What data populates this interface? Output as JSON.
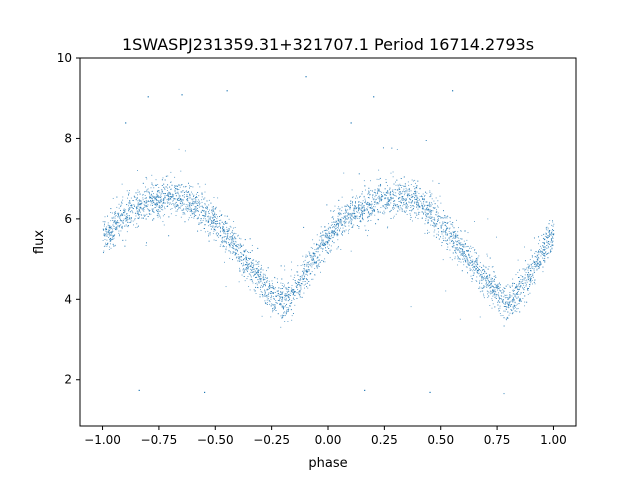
{
  "chart_data": {
    "type": "scatter",
    "title": "1SWASPJ231359.31+321707.1 Period 16714.2793s",
    "xlabel": "phase",
    "ylabel": "flux",
    "xlim": [
      -1.1,
      1.1
    ],
    "ylim": [
      0.85,
      10.0
    ],
    "xticks": [
      -1.0,
      -0.75,
      -0.5,
      -0.25,
      0.0,
      0.25,
      0.5,
      0.75,
      1.0
    ],
    "xtick_labels": [
      "−1.00",
      "−0.75",
      "−0.50",
      "−0.25",
      "0.00",
      "0.25",
      "0.50",
      "0.75",
      "1.00"
    ],
    "yticks": [
      2,
      4,
      6,
      8,
      10
    ],
    "ytick_labels": [
      "2",
      "4",
      "6",
      "8",
      "10"
    ],
    "grid": false,
    "legend": "none",
    "point_color": "#1f77b4",
    "series": [
      {
        "curve": {
          "phase": [
            -1.0,
            -0.9,
            -0.8,
            -0.7,
            -0.6,
            -0.5,
            -0.4,
            -0.3,
            -0.25,
            -0.2,
            -0.15,
            -0.1,
            0.0,
            0.1,
            0.2,
            0.3,
            0.4,
            0.5,
            0.6,
            0.7,
            0.75,
            0.8,
            0.85,
            0.9,
            1.0
          ],
          "flux": [
            5.6,
            6.1,
            6.4,
            6.55,
            6.4,
            5.9,
            5.2,
            4.5,
            4.15,
            4.0,
            4.2,
            4.7,
            5.6,
            6.1,
            6.4,
            6.55,
            6.4,
            5.9,
            5.2,
            4.5,
            4.15,
            4.0,
            4.2,
            4.7,
            5.6
          ]
        },
        "scatter_sd": 0.22,
        "outliers": [
          [
            -0.84,
            1.75
          ],
          [
            0.16,
            1.75
          ],
          [
            -0.45,
            9.2
          ],
          [
            0.55,
            9.2
          ],
          [
            -0.8,
            9.05
          ],
          [
            0.2,
            9.05
          ],
          [
            -0.65,
            9.1
          ],
          [
            -0.1,
            9.55
          ],
          [
            -0.55,
            1.7
          ],
          [
            0.45,
            1.7
          ],
          [
            -0.9,
            8.4
          ],
          [
            0.1,
            8.4
          ]
        ]
      }
    ]
  }
}
